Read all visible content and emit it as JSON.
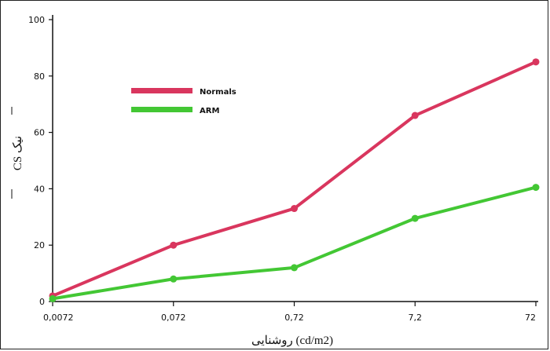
{
  "chart_data": {
    "type": "line",
    "title": "",
    "xlabel": "روشنایی (cd/m2)",
    "ylabel": "CS نیک",
    "categories": [
      "0,0072",
      "0,072",
      "0,72",
      "7,2",
      "72"
    ],
    "ylim": [
      0,
      100
    ],
    "yticks": [
      "0",
      "20",
      "40",
      "60",
      "80",
      "100"
    ],
    "grid": false,
    "legend_position": "top-left",
    "series": [
      {
        "name": "Normals",
        "color": "#d9365e",
        "values": [
          2,
          20,
          33,
          66,
          85
        ]
      },
      {
        "name": "ARM",
        "color": "#43c734",
        "values": [
          1,
          8,
          12,
          29.5,
          40.5
        ]
      }
    ]
  }
}
